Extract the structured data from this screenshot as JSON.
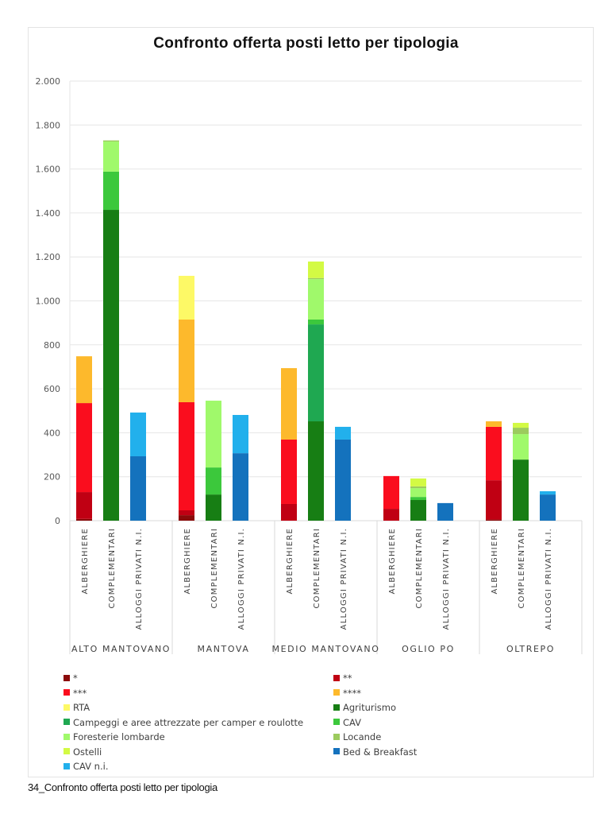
{
  "caption": "34_Confronto offerta posti letto per tipologia",
  "chart_data": {
    "type": "bar",
    "stacked": true,
    "title": "Confronto offerta posti letto per tipologia",
    "xlabel": "",
    "ylabel": "",
    "ylim": [
      0,
      2000
    ],
    "yticks": [
      0,
      200,
      400,
      600,
      800,
      1000,
      1200,
      1400,
      1600,
      1800,
      2000
    ],
    "ytick_labels": [
      "0",
      "200",
      "400",
      "600",
      "800",
      "1.000",
      "1.200",
      "1.400",
      "1.600",
      "1.800",
      "2.000"
    ],
    "grid": true,
    "legend_position": "bottom",
    "groups": [
      "ALTO MANTOVANO",
      "MANTOVA",
      "MEDIO MANTOVANO",
      "OGLIO PO",
      "OLTREPO"
    ],
    "subcategories": [
      "ALBERGHIERE",
      "COMPLEMENTARI",
      "ALLOGGI PRIVATI N.I."
    ],
    "series": [
      {
        "name": "*",
        "color": "#8b0a0a",
        "values": [
          [
            8,
            0,
            0
          ],
          [
            25,
            0,
            0
          ],
          [
            0,
            0,
            0
          ],
          [
            0,
            0,
            0
          ],
          [
            5,
            0,
            0
          ]
        ]
      },
      {
        "name": "**",
        "color": "#c00013",
        "values": [
          [
            122,
            0,
            0
          ],
          [
            22,
            0,
            0
          ],
          [
            76,
            0,
            0
          ],
          [
            54,
            0,
            0
          ],
          [
            179,
            0,
            0
          ]
        ]
      },
      {
        "name": "***",
        "color": "#fa0d1e",
        "values": [
          [
            405,
            0,
            0
          ],
          [
            492,
            0,
            0
          ],
          [
            293,
            0,
            0
          ],
          [
            149,
            0,
            0
          ],
          [
            243,
            0,
            0
          ]
        ]
      },
      {
        "name": "****",
        "color": "#fdb92c",
        "values": [
          [
            213,
            0,
            0
          ],
          [
            376,
            0,
            0
          ],
          [
            325,
            0,
            0
          ],
          [
            0,
            0,
            0
          ],
          [
            25,
            0,
            0
          ]
        ]
      },
      {
        "name": "RTA",
        "color": "#fdf966",
        "values": [
          [
            0,
            0,
            0
          ],
          [
            199,
            0,
            0
          ],
          [
            0,
            0,
            0
          ],
          [
            0,
            0,
            0
          ],
          [
            0,
            0,
            0
          ]
        ]
      },
      {
        "name": "Agriturismo",
        "color": "#177e14",
        "values": [
          [
            0,
            1414,
            0
          ],
          [
            0,
            119,
            0
          ],
          [
            0,
            452,
            0
          ],
          [
            0,
            94,
            0
          ],
          [
            0,
            278,
            0
          ]
        ]
      },
      {
        "name": "Campeggi e aree attrezzate per camper e roulotte",
        "color": "#1fa851",
        "values": [
          [
            0,
            0,
            0
          ],
          [
            0,
            0,
            0
          ],
          [
            0,
            441,
            0
          ],
          [
            0,
            0,
            0
          ],
          [
            0,
            0,
            0
          ]
        ]
      },
      {
        "name": "CAV",
        "color": "#3cc83c",
        "values": [
          [
            0,
            174,
            0
          ],
          [
            0,
            123,
            0
          ],
          [
            0,
            22,
            0
          ],
          [
            0,
            14,
            0
          ],
          [
            0,
            0,
            0
          ]
        ]
      },
      {
        "name": "Foresterie lombarde",
        "color": "#a0f96b",
        "values": [
          [
            0,
            137,
            0
          ],
          [
            0,
            304,
            0
          ],
          [
            0,
            184,
            0
          ],
          [
            0,
            40,
            0
          ],
          [
            0,
            116,
            0
          ]
        ]
      },
      {
        "name": "Locande",
        "color": "#9ccb5e",
        "values": [
          [
            0,
            5,
            0
          ],
          [
            0,
            0,
            0
          ],
          [
            0,
            5,
            0
          ],
          [
            0,
            8,
            0
          ],
          [
            0,
            29,
            0
          ]
        ]
      },
      {
        "name": "Ostelli",
        "color": "#d3fa44",
        "values": [
          [
            0,
            0,
            0
          ],
          [
            0,
            0,
            0
          ],
          [
            0,
            75,
            0
          ],
          [
            0,
            36,
            0
          ],
          [
            0,
            22,
            0
          ]
        ]
      },
      {
        "name": "Bed & Breakfast",
        "color": "#1472bd",
        "values": [
          [
            0,
            0,
            293
          ],
          [
            0,
            0,
            307
          ],
          [
            0,
            0,
            369
          ],
          [
            0,
            0,
            80
          ],
          [
            0,
            0,
            119
          ]
        ]
      },
      {
        "name": "CAV n.i.",
        "color": "#22b0ec",
        "values": [
          [
            0,
            0,
            199
          ],
          [
            0,
            0,
            174
          ],
          [
            0,
            0,
            58
          ],
          [
            0,
            0,
            0
          ],
          [
            0,
            0,
            15
          ]
        ]
      }
    ],
    "legend": [
      {
        "name": "*",
        "color": "#8b0a0a"
      },
      {
        "name": "**",
        "color": "#c00013"
      },
      {
        "name": "***",
        "color": "#fa0d1e"
      },
      {
        "name": "****",
        "color": "#fdb92c"
      },
      {
        "name": "RTA",
        "color": "#fdf966"
      },
      {
        "name": "Agriturismo",
        "color": "#177e14"
      },
      {
        "name": "Campeggi e aree attrezzate per camper e roulotte",
        "color": "#1fa851"
      },
      {
        "name": "CAV",
        "color": "#3cc83c"
      },
      {
        "name": "Foresterie lombarde",
        "color": "#a0f96b"
      },
      {
        "name": "Locande",
        "color": "#9ccb5e"
      },
      {
        "name": "Ostelli",
        "color": "#d3fa44"
      },
      {
        "name": "Bed & Breakfast",
        "color": "#1472bd"
      },
      {
        "name": "CAV n.i.",
        "color": "#22b0ec"
      }
    ]
  }
}
